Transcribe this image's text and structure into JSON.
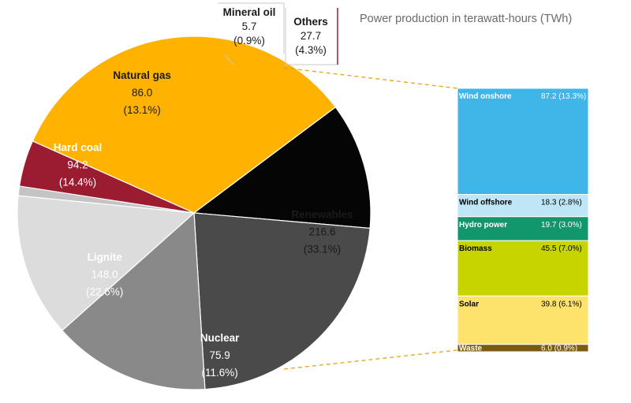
{
  "chart_data": [
    {
      "type": "pie",
      "title": "Power production in terawatt-hours (TWh)",
      "slices": [
        {
          "name": "Renewables",
          "value": 216.6,
          "value_label": "216.6",
          "pct_label": "(33.1%)",
          "color": "#FFB300"
        },
        {
          "name": "Nuclear",
          "value": 75.9,
          "value_label": "75.9",
          "pct_label": "(11.6%)",
          "color": "#050505"
        },
        {
          "name": "Lignite",
          "value": 148.0,
          "value_label": "148.0",
          "pct_label": "(22.6%)",
          "color": "#4A4A4A"
        },
        {
          "name": "Hard coal",
          "value": 94.2,
          "value_label": "94.2",
          "pct_label": "(14.4%)",
          "color": "#898989"
        },
        {
          "name": "Natural gas",
          "value": 86.0,
          "value_label": "86.0",
          "pct_label": "(13.1%)",
          "color": "#DCDCDC"
        },
        {
          "name": "Mineral oil",
          "value": 5.7,
          "value_label": "5.7",
          "pct_label": "(0.9%)",
          "color": "#C4C4C4"
        },
        {
          "name": "Others",
          "value": 27.7,
          "value_label": "27.7",
          "pct_label": "(4.3%)",
          "color": "#9B1B30"
        }
      ]
    },
    {
      "type": "bar",
      "stacked": true,
      "segments": [
        {
          "name": "Wind onshore",
          "value": 87.2,
          "value_label": "87.2",
          "pct_label": "(13.3%)",
          "color": "#3FB5E8",
          "text_color": "#ffffff"
        },
        {
          "name": "Wind offshore",
          "value": 18.3,
          "value_label": "18.3",
          "pct_label": "(2.8%)",
          "color": "#BEE6F6",
          "text_color": "#000000"
        },
        {
          "name": "Hydro power",
          "value": 19.7,
          "value_label": "19.7",
          "pct_label": "(3.0%)",
          "color": "#12966B",
          "text_color": "#ffffff"
        },
        {
          "name": "Biomass",
          "value": 45.5,
          "value_label": "45.5",
          "pct_label": "(7.0%)",
          "color": "#C8D400",
          "text_color": "#000000"
        },
        {
          "name": "Solar",
          "value": 39.8,
          "value_label": "39.8",
          "pct_label": "(6.1%)",
          "color": "#FDE36B",
          "text_color": "#000000"
        },
        {
          "name": "Waste",
          "value": 6.0,
          "value_label": "6.0",
          "pct_label": "(0.9%)",
          "color": "#7A5B10",
          "text_color": "#ffffff"
        }
      ]
    }
  ],
  "colors": {
    "connector": "#E8A317",
    "callout_box": "#C8C8C8",
    "others_callout_line": "#9B1B30"
  }
}
